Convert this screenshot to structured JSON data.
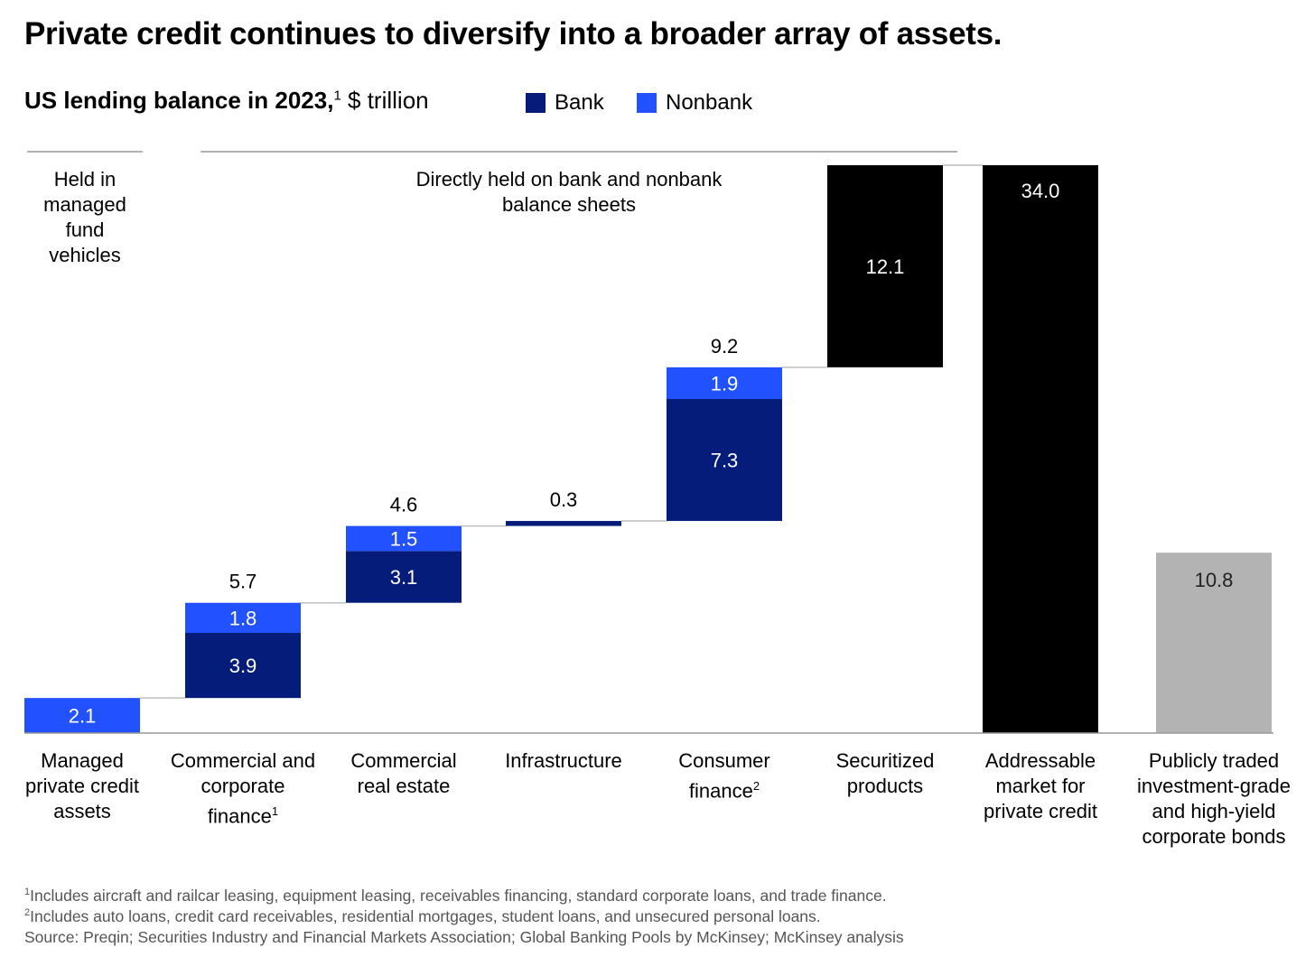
{
  "title": "Private credit continues to diversify into a broader array of assets.",
  "subtitle": {
    "bold": "US lending balance in 2023,",
    "sup": "1",
    "unit": " $ trillion"
  },
  "legend": [
    {
      "label": "Bank",
      "color": "#051C7A"
    },
    {
      "label": "Nonbank",
      "color": "#2251FF"
    }
  ],
  "groups": {
    "managed": "Held in managed fund vehicles",
    "direct": "Directly held on bank and nonbank balance sheets"
  },
  "colors": {
    "bank": "#051C7A",
    "nonbank": "#2251FF",
    "total": "#000000",
    "public": "#B3B3B3",
    "connector": "#BFBFBF",
    "baseline": "#999999"
  },
  "chart_data": {
    "type": "waterfall",
    "title": "Private credit continues to diversify into a broader array of assets.",
    "ylabel": "$ trillion",
    "ylim": [
      0,
      34
    ],
    "categories": [
      {
        "label": "Managed private credit assets",
        "kind": "step",
        "segments": [
          {
            "series": "Nonbank",
            "value": 2.1,
            "label": "2.1"
          }
        ],
        "total_label": ""
      },
      {
        "label": "Commercial and corporate finance",
        "sup": "1",
        "kind": "step",
        "segments": [
          {
            "series": "Bank",
            "value": 3.9,
            "label": "3.9"
          },
          {
            "series": "Nonbank",
            "value": 1.8,
            "label": "1.8"
          }
        ],
        "total_label": "5.7"
      },
      {
        "label": "Commercial real estate",
        "kind": "step",
        "segments": [
          {
            "series": "Bank",
            "value": 3.1,
            "label": "3.1"
          },
          {
            "series": "Nonbank",
            "value": 1.5,
            "label": "1.5"
          }
        ],
        "total_label": "4.6"
      },
      {
        "label": "Infrastructure",
        "kind": "step",
        "segments": [
          {
            "series": "Bank",
            "value": 0.3,
            "label": ""
          }
        ],
        "total_label": "0.3"
      },
      {
        "label": "Consumer finance",
        "sup": "2",
        "kind": "step",
        "segments": [
          {
            "series": "Bank",
            "value": 7.3,
            "label": "7.3"
          },
          {
            "series": "Nonbank",
            "value": 1.9,
            "label": "1.9"
          }
        ],
        "total_label": "9.2"
      },
      {
        "label": "Securitized products",
        "kind": "step",
        "segments": [
          {
            "series": "Total",
            "value": 12.1,
            "label": "12.1"
          }
        ],
        "total_label": ""
      },
      {
        "label": "Addressable market for private credit",
        "kind": "total",
        "segments": [
          {
            "series": "Total",
            "value": 34.0,
            "label": "34.0"
          }
        ],
        "total_label": ""
      },
      {
        "label": "Publicly traded investment-grade and high-yield corporate bonds",
        "kind": "standalone",
        "segments": [
          {
            "series": "Public",
            "value": 10.8,
            "label": "10.8"
          }
        ],
        "total_label": ""
      }
    ]
  },
  "footnotes": [
    {
      "sup": "1",
      "text": "Includes aircraft and railcar leasing, equipment leasing, receivables financing, standard corporate loans, and trade finance."
    },
    {
      "sup": "2",
      "text": "Includes auto loans, credit card receivables, residential mortgages, student loans, and unsecured personal loans."
    }
  ],
  "source": " Source: Preqin; Securities Industry and Financial Markets Association; Global Banking Pools by McKinsey; McKinsey analysis"
}
